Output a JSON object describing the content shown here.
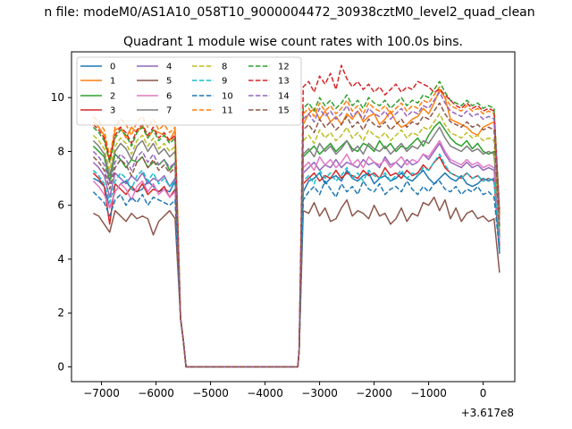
{
  "suptitle": "n file: modeM0/AS1A10_058T10_9000004472_30938cztM0_level2_quad_clean",
  "chart_data": {
    "type": "line",
    "title": "Quadrant 1 module wise count rates with 100.0s bins.",
    "xlabel": "",
    "ylabel": "",
    "offset_text": "+3.617e8",
    "xlim": [
      -7550,
      580
    ],
    "ylim": [
      -0.55,
      11.7
    ],
    "xticks": [
      -7000,
      -6000,
      -5000,
      -4000,
      -3000,
      -2000,
      -1000,
      0
    ],
    "xtick_labels": [
      "−7000",
      "−6000",
      "−5000",
      "−4000",
      "−3000",
      "−2000",
      "−1000",
      "0"
    ],
    "yticks": [
      0,
      2,
      4,
      6,
      8,
      10
    ],
    "ytick_labels": [
      "0",
      "2",
      "4",
      "6",
      "8",
      "10"
    ],
    "grid": false,
    "legend_position": "upper left",
    "legend_columns": 4,
    "x_start": -7150,
    "x_step": 100,
    "gap_start": -5600,
    "gap_end": -3350,
    "series": [
      {
        "name": "0",
        "color": "#1f77b4",
        "dash": "solid",
        "pre": [
          7.0,
          6.9,
          6.7,
          5.9,
          6.5,
          6.8,
          6.9,
          6.6,
          6.5,
          6.6,
          6.9,
          6.7,
          6.5,
          6.6,
          6.5,
          6.9
        ],
        "post": [
          6.5,
          6.9,
          7.0,
          7.2,
          6.8,
          7.0,
          7.1,
          6.9,
          7.3,
          7.0,
          6.9,
          7.1,
          7.2,
          6.8,
          7.0,
          7.1,
          6.9,
          7.0,
          7.2,
          7.0,
          6.9,
          7.1,
          7.3,
          7.0,
          6.8,
          7.0,
          7.2,
          7.0,
          6.9,
          7.1,
          6.8,
          6.7,
          6.8,
          7.0,
          6.9,
          7.0,
          4.2
        ]
      },
      {
        "name": "1",
        "color": "#ff7f0e",
        "dash": "solid",
        "pre": [
          9.1,
          8.9,
          8.6,
          7.6,
          8.8,
          8.9,
          8.5,
          8.9,
          8.7,
          9.0,
          8.5,
          8.8,
          8.7,
          8.6,
          8.4,
          8.8
        ],
        "post": [
          9.0,
          9.4,
          9.6,
          9.2,
          9.5,
          9.1,
          9.3,
          9.0,
          9.4,
          9.2,
          9.5,
          9.1,
          9.3,
          9.4,
          9.0,
          9.2,
          9.5,
          9.1,
          8.9,
          9.0,
          9.2,
          9.3,
          9.6,
          9.4,
          9.8,
          10.3,
          10.0,
          9.2,
          9.1,
          9.0,
          8.9,
          8.7,
          8.6,
          8.9,
          9.0,
          9.1,
          5.0
        ]
      },
      {
        "name": "2",
        "color": "#2ca02c",
        "dash": "solid",
        "pre": [
          8.2,
          8.0,
          7.8,
          6.9,
          7.9,
          7.7,
          7.4,
          7.7,
          7.6,
          7.8,
          7.4,
          7.6,
          7.5,
          7.7,
          7.3,
          7.6
        ],
        "post": [
          7.8,
          8.0,
          8.2,
          7.9,
          8.1,
          8.3,
          8.0,
          8.2,
          8.4,
          8.1,
          8.0,
          8.3,
          8.2,
          8.0,
          8.4,
          8.1,
          8.3,
          8.0,
          8.2,
          8.1,
          8.3,
          8.5,
          8.2,
          8.6,
          8.9,
          9.1,
          8.8,
          8.5,
          8.3,
          8.2,
          8.4,
          8.1,
          8.3,
          8.0,
          7.9,
          8.0,
          4.8
        ]
      },
      {
        "name": "3",
        "color": "#d62728",
        "dash": "solid",
        "pre": [
          7.2,
          7.0,
          6.7,
          5.3,
          6.8,
          6.6,
          6.4,
          6.7,
          6.5,
          6.8,
          6.4,
          6.6,
          6.5,
          6.7,
          6.3,
          6.6
        ],
        "post": [
          6.8,
          7.0,
          7.2,
          6.9,
          7.1,
          7.0,
          7.3,
          7.0,
          7.2,
          7.1,
          7.0,
          7.3,
          7.1,
          7.2,
          7.0,
          7.4,
          7.1,
          7.2,
          7.0,
          7.3,
          7.1,
          7.2,
          7.5,
          7.3,
          7.6,
          7.8,
          7.4,
          7.2,
          7.1,
          7.0,
          7.2,
          7.0,
          7.1,
          6.9,
          7.0,
          6.9,
          4.5
        ]
      },
      {
        "name": "4",
        "color": "#9467bd",
        "dash": "solid",
        "pre": [
          7.6,
          7.4,
          7.1,
          6.3,
          7.2,
          7.0,
          6.8,
          7.1,
          6.9,
          7.2,
          6.8,
          7.0,
          6.9,
          7.1,
          6.7,
          7.0
        ],
        "post": [
          7.2,
          7.4,
          7.6,
          7.3,
          7.5,
          7.4,
          7.7,
          7.4,
          7.6,
          7.5,
          7.4,
          7.7,
          7.5,
          7.6,
          7.4,
          7.8,
          7.5,
          7.6,
          7.4,
          7.7,
          7.5,
          7.6,
          7.9,
          7.7,
          8.0,
          8.3,
          7.9,
          7.6,
          7.5,
          7.4,
          7.6,
          7.4,
          7.5,
          7.3,
          7.4,
          7.3,
          4.6
        ]
      },
      {
        "name": "5",
        "color": "#8c564b",
        "dash": "solid",
        "pre": [
          5.7,
          5.6,
          5.3,
          5.0,
          5.8,
          5.6,
          5.4,
          5.7,
          5.5,
          5.6,
          5.5,
          4.9,
          5.4,
          5.6,
          5.8,
          5.5
        ],
        "post": [
          5.8,
          5.7,
          6.1,
          5.6,
          5.9,
          5.4,
          5.5,
          5.9,
          6.2,
          5.6,
          5.8,
          5.7,
          5.5,
          6.0,
          5.6,
          5.7,
          5.3,
          5.5,
          5.9,
          5.4,
          5.7,
          5.6,
          6.1,
          6.0,
          6.3,
          5.8,
          6.2,
          5.5,
          5.9,
          5.4,
          5.7,
          5.8,
          5.5,
          5.6,
          5.4,
          5.5,
          3.5
        ]
      },
      {
        "name": "6",
        "color": "#e377c2",
        "dash": "solid",
        "pre": [
          6.9,
          6.7,
          6.4,
          5.9,
          6.5,
          6.8,
          6.6,
          6.2,
          6.7,
          6.9,
          6.5,
          6.8,
          6.4,
          6.6,
          6.3,
          6.5
        ],
        "post": [
          7.4,
          7.6,
          7.3,
          7.8,
          7.5,
          7.7,
          7.4,
          7.6,
          7.9,
          7.5,
          7.7,
          7.4,
          7.8,
          7.6,
          7.5,
          7.7,
          7.4,
          7.6,
          7.8,
          7.5,
          7.7,
          7.6,
          7.9,
          7.8,
          8.1,
          8.4,
          8.0,
          7.7,
          7.6,
          7.5,
          7.7,
          7.5,
          7.6,
          7.4,
          7.5,
          7.4,
          4.6
        ]
      },
      {
        "name": "7",
        "color": "#7f7f7f",
        "dash": "solid",
        "pre": [
          8.4,
          8.2,
          7.9,
          7.1,
          8.0,
          8.3,
          8.1,
          7.7,
          8.2,
          8.4,
          8.0,
          8.3,
          7.9,
          8.1,
          7.8,
          8.0
        ],
        "post": [
          7.9,
          8.1,
          7.8,
          8.3,
          8.0,
          8.2,
          7.9,
          8.1,
          8.4,
          8.0,
          8.2,
          7.9,
          8.3,
          8.1,
          8.0,
          8.2,
          7.9,
          8.1,
          8.3,
          8.0,
          8.2,
          8.1,
          8.4,
          8.3,
          8.6,
          8.9,
          8.5,
          8.2,
          8.1,
          8.0,
          8.2,
          8.0,
          8.1,
          7.9,
          8.0,
          7.9,
          4.9
        ]
      },
      {
        "name": "8",
        "color": "#bcbd22",
        "dash": "dashed",
        "pre": [
          8.6,
          8.4,
          8.1,
          7.3,
          8.2,
          8.5,
          8.3,
          7.9,
          8.4,
          8.6,
          8.2,
          8.5,
          8.1,
          8.3,
          8.0,
          8.2
        ],
        "post": [
          8.4,
          8.6,
          8.3,
          8.8,
          8.5,
          8.7,
          8.4,
          8.6,
          8.9,
          8.5,
          8.7,
          8.4,
          8.8,
          8.6,
          8.5,
          8.7,
          8.4,
          8.6,
          8.8,
          8.5,
          8.7,
          8.6,
          8.9,
          8.8,
          9.1,
          9.4,
          9.0,
          8.7,
          8.6,
          8.5,
          8.7,
          8.5,
          8.6,
          8.4,
          8.5,
          8.4,
          5.1
        ]
      },
      {
        "name": "9",
        "color": "#17becf",
        "dash": "dashed",
        "pre": [
          7.3,
          7.1,
          6.8,
          6.1,
          6.9,
          7.2,
          7.0,
          6.6,
          7.1,
          7.3,
          6.9,
          7.2,
          6.8,
          7.0,
          6.7,
          6.9
        ],
        "post": [
          6.9,
          7.1,
          6.8,
          7.3,
          7.0,
          7.2,
          6.9,
          7.1,
          7.4,
          7.0,
          7.2,
          6.9,
          7.3,
          7.1,
          7.0,
          7.2,
          6.9,
          7.1,
          7.3,
          7.0,
          7.2,
          7.1,
          7.4,
          7.3,
          7.6,
          7.9,
          7.5,
          7.2,
          7.1,
          7.0,
          7.2,
          7.0,
          7.1,
          6.9,
          7.0,
          6.9,
          4.4
        ]
      },
      {
        "name": "10",
        "color": "#1f77b4",
        "dash": "dashed",
        "pre": [
          6.5,
          6.3,
          6.1,
          5.6,
          6.2,
          6.4,
          6.0,
          6.3,
          6.1,
          6.4,
          6.0,
          6.3,
          6.2,
          6.1,
          6.0,
          6.2
        ],
        "post": [
          6.2,
          6.5,
          6.7,
          6.4,
          6.9,
          6.6,
          6.3,
          6.8,
          6.5,
          6.7,
          6.4,
          6.9,
          6.6,
          6.5,
          6.8,
          6.4,
          6.6,
          6.7,
          6.5,
          6.9,
          6.6,
          6.4,
          6.7,
          6.5,
          6.8,
          6.9,
          6.6,
          6.5,
          6.7,
          6.4,
          6.6,
          6.5,
          6.7,
          6.4,
          6.5,
          6.3,
          4.3
        ]
      },
      {
        "name": "11",
        "color": "#ff7f0e",
        "dash": "dashed",
        "pre": [
          9.3,
          9.1,
          8.8,
          7.8,
          8.9,
          9.2,
          9.0,
          8.6,
          9.1,
          9.3,
          8.9,
          9.2,
          8.8,
          9.0,
          8.7,
          8.9
        ],
        "post": [
          9.4,
          9.6,
          9.3,
          9.8,
          9.5,
          9.7,
          9.4,
          9.6,
          9.9,
          9.5,
          9.7,
          9.4,
          9.8,
          9.6,
          9.5,
          9.7,
          9.4,
          9.6,
          9.8,
          9.5,
          9.7,
          9.6,
          9.9,
          9.8,
          10.1,
          10.4,
          10.0,
          9.7,
          9.6,
          9.5,
          9.7,
          9.5,
          9.6,
          9.4,
          9.5,
          9.4,
          5.6
        ]
      },
      {
        "name": "12",
        "color": "#2ca02c",
        "dash": "dashed",
        "pre": [
          8.9,
          8.7,
          8.4,
          7.6,
          8.5,
          8.8,
          8.6,
          8.2,
          8.7,
          8.9,
          8.5,
          8.8,
          8.4,
          8.6,
          8.3,
          8.5
        ],
        "post": [
          9.6,
          9.8,
          9.5,
          10.0,
          9.7,
          9.9,
          9.6,
          9.8,
          10.1,
          9.7,
          9.9,
          9.6,
          10.0,
          9.8,
          9.7,
          9.9,
          9.6,
          9.8,
          10.0,
          9.7,
          9.9,
          9.8,
          10.1,
          10.0,
          10.3,
          10.6,
          10.2,
          9.9,
          9.8,
          9.7,
          9.9,
          9.7,
          9.8,
          9.6,
          9.7,
          9.6,
          5.8
        ]
      },
      {
        "name": "13",
        "color": "#d62728",
        "dash": "dashed",
        "pre": [
          9.0,
          8.8,
          8.5,
          7.7,
          8.6,
          8.9,
          8.7,
          8.3,
          8.8,
          9.0,
          8.6,
          8.9,
          8.5,
          8.7,
          8.4,
          8.6
        ],
        "post": [
          10.4,
          10.6,
          10.2,
          10.8,
          10.5,
          10.9,
          10.3,
          11.2,
          10.7,
          10.4,
          10.6,
          10.3,
          10.5,
          10.2,
          10.4,
          10.1,
          10.3,
          10.5,
          10.2,
          10.4,
          10.3,
          10.6,
          10.5,
          10.4,
          10.2,
          10.3,
          10.1,
          9.9,
          9.7,
          9.6,
          9.8,
          9.6,
          9.7,
          9.5,
          9.6,
          9.5,
          5.7
        ]
      },
      {
        "name": "14",
        "color": "#9467bd",
        "dash": "dashed",
        "pre": [
          8.0,
          7.8,
          7.5,
          6.8,
          7.6,
          7.9,
          7.7,
          7.3,
          7.8,
          8.0,
          7.6,
          7.9,
          7.5,
          7.7,
          7.4,
          7.6
        ],
        "post": [
          9.2,
          9.4,
          9.1,
          9.6,
          9.3,
          9.5,
          9.2,
          9.4,
          9.7,
          9.3,
          9.5,
          9.2,
          9.6,
          9.4,
          9.3,
          9.5,
          9.2,
          9.4,
          9.6,
          9.3,
          9.5,
          9.4,
          9.7,
          9.6,
          9.9,
          10.2,
          9.8,
          9.5,
          9.4,
          9.3,
          9.5,
          9.3,
          9.4,
          9.2,
          9.3,
          9.2,
          5.4
        ]
      },
      {
        "name": "15",
        "color": "#8c564b",
        "dash": "dashed",
        "pre": [
          7.8,
          7.6,
          7.3,
          6.6,
          7.4,
          7.7,
          7.5,
          7.1,
          7.6,
          7.8,
          7.4,
          7.7,
          7.3,
          7.5,
          7.2,
          7.4
        ],
        "post": [
          8.8,
          9.0,
          8.7,
          9.2,
          8.9,
          9.1,
          8.8,
          9.0,
          9.3,
          8.9,
          9.1,
          8.8,
          9.2,
          9.0,
          8.9,
          9.1,
          8.8,
          9.0,
          9.2,
          8.9,
          9.1,
          9.0,
          9.3,
          9.2,
          9.5,
          9.8,
          9.4,
          9.1,
          9.0,
          8.9,
          9.1,
          8.9,
          9.0,
          8.8,
          8.9,
          8.8,
          5.2
        ]
      }
    ]
  }
}
